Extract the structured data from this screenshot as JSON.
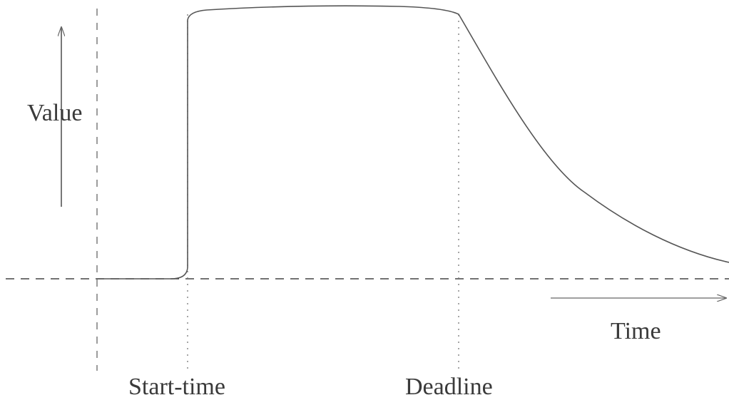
{
  "labels": {
    "value": "Value",
    "time": "Time",
    "start_time": "Start-time",
    "deadline": "Deadline"
  },
  "colors": {
    "curve": "#555555",
    "guides": "#666666",
    "text": "#3a3a3a"
  }
}
